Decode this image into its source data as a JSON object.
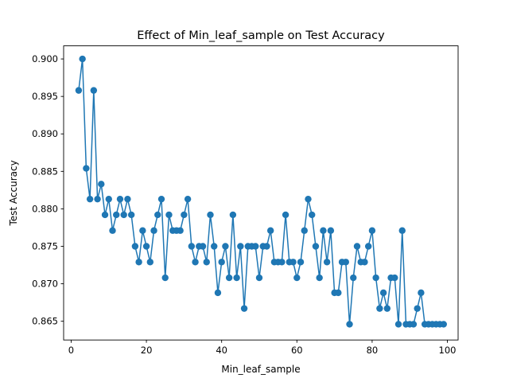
{
  "chart_data": {
    "type": "line",
    "title": "Effect of Min_leaf_sample on Test Accuracy",
    "xlabel": "Min_leaf_sample",
    "ylabel": "Test Accuracy",
    "xlim": [
      -2,
      102.85
    ],
    "ylim": [
      0.8625,
      0.90175
    ],
    "xticks": [
      0,
      20,
      40,
      60,
      80,
      100
    ],
    "yticks": [
      0.865,
      0.87,
      0.875,
      0.88,
      0.885,
      0.89,
      0.895,
      0.9
    ],
    "ytick_labels": [
      "0.865",
      "0.870",
      "0.875",
      "0.880",
      "0.885",
      "0.890",
      "0.895",
      "0.900"
    ],
    "grid": false,
    "color": "#1f77b4",
    "series": [
      {
        "marker": "circle",
        "x": [
          2,
          3,
          4,
          5,
          6,
          7,
          8,
          9,
          10,
          11,
          12,
          13,
          14,
          15,
          16,
          17,
          18,
          19,
          20,
          21,
          22,
          23,
          24,
          25,
          26,
          27,
          28,
          29,
          30,
          31,
          32,
          33,
          34,
          35,
          36,
          37,
          38,
          39,
          40,
          41,
          42,
          43,
          44,
          45,
          46,
          47,
          48,
          49,
          50,
          51,
          52,
          53,
          54,
          55,
          56,
          57,
          58,
          59,
          60,
          61,
          62,
          63,
          64,
          65,
          66,
          67,
          68,
          69,
          70,
          71,
          72,
          73,
          74,
          75,
          76,
          77,
          78,
          79,
          80,
          81,
          82,
          83,
          84,
          85,
          86,
          87,
          88,
          89,
          90,
          91,
          92,
          93,
          94,
          95,
          96,
          97,
          98,
          99
        ],
        "y": [
          0.8958,
          0.9,
          0.8854,
          0.8813,
          0.8958,
          0.8813,
          0.8833,
          0.8792,
          0.8813,
          0.8771,
          0.8792,
          0.8813,
          0.8792,
          0.8813,
          0.8792,
          0.875,
          0.8729,
          0.8771,
          0.875,
          0.8729,
          0.8771,
          0.8792,
          0.8813,
          0.8708,
          0.8792,
          0.8771,
          0.8771,
          0.8771,
          0.8792,
          0.8813,
          0.875,
          0.8729,
          0.875,
          0.875,
          0.8729,
          0.8792,
          0.875,
          0.8688,
          0.8729,
          0.875,
          0.8708,
          0.8792,
          0.8708,
          0.875,
          0.8667,
          0.875,
          0.875,
          0.875,
          0.8708,
          0.875,
          0.875,
          0.8771,
          0.8729,
          0.8729,
          0.8729,
          0.8792,
          0.8729,
          0.8729,
          0.8708,
          0.8729,
          0.8771,
          0.8813,
          0.8792,
          0.875,
          0.8708,
          0.8771,
          0.8729,
          0.8771,
          0.8688,
          0.8688,
          0.8729,
          0.8729,
          0.8646,
          0.8708,
          0.875,
          0.8729,
          0.8729,
          0.875,
          0.8771,
          0.8708,
          0.8667,
          0.8688,
          0.8667,
          0.8708,
          0.8708,
          0.8646,
          0.8771,
          0.8646,
          0.8646,
          0.8646,
          0.8667,
          0.8688,
          0.8646,
          0.8646,
          0.8646,
          0.8646,
          0.8646,
          0.8646
        ]
      }
    ]
  }
}
